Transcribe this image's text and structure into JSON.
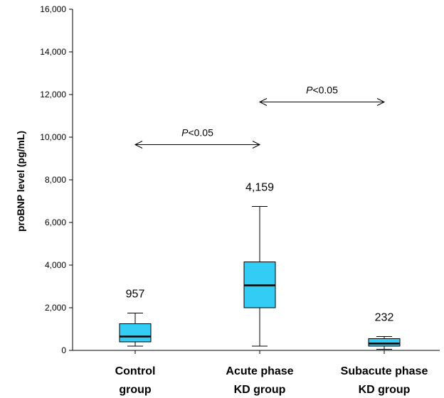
{
  "chart_data": {
    "type": "box",
    "ylabel": "proBNP level (pg/mL)",
    "ylim": [
      0,
      16000
    ],
    "yticks": [
      0,
      2000,
      4000,
      6000,
      8000,
      10000,
      12000,
      14000,
      16000
    ],
    "ytick_labels": [
      "0",
      "2,000",
      "4,000",
      "6,000",
      "8,000",
      "10,000",
      "12,000",
      "14,000",
      "16,000"
    ],
    "box_color": "#33ccf5",
    "categories": [
      {
        "label_line1": "Control",
        "label_line2": "group",
        "whisker_low": 200,
        "q1": 400,
        "median": 650,
        "q3": 1250,
        "whisker_high": 1750,
        "annotation": "957"
      },
      {
        "label_line1": "Acute phase",
        "label_line2": "KD group",
        "whisker_low": 200,
        "q1": 2000,
        "median": 3050,
        "q3": 4150,
        "whisker_high": 6750,
        "annotation": "4,159"
      },
      {
        "label_line1": "Subacute phase",
        "label_line2": "KD group",
        "whisker_low": 50,
        "q1": 200,
        "median": 320,
        "q3": 550,
        "whisker_high": 650,
        "annotation": "232"
      }
    ],
    "comparisons": [
      {
        "from": 0,
        "to": 1,
        "y": 9650,
        "label_italic": "P",
        "label_rest": "<0.05"
      },
      {
        "from": 1,
        "to": 2,
        "y": 11650,
        "label_italic": "P",
        "label_rest": "<0.05"
      }
    ]
  }
}
